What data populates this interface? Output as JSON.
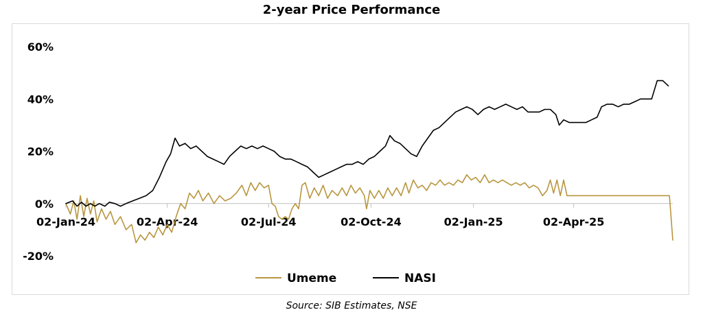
{
  "chart_data": {
    "type": "line",
    "title": "2-year Price Performance",
    "source": "Source: SIB Estimates, NSE",
    "ylim": [
      -0.2,
      0.6
    ],
    "y_ticks": [
      {
        "value": -0.2,
        "label": "-20%"
      },
      {
        "value": 0.0,
        "label": "0%"
      },
      {
        "value": 0.2,
        "label": "20%"
      },
      {
        "value": 0.4,
        "label": "40%"
      },
      {
        "value": 0.6,
        "label": "60%"
      }
    ],
    "xlim": [
      "2024-01-02",
      "2025-06-30"
    ],
    "x_ticks": [
      {
        "date": "2024-01-02",
        "label": "02-Jan-24"
      },
      {
        "date": "2024-04-02",
        "label": "02-Apr-24"
      },
      {
        "date": "2024-07-02",
        "label": "02-Jul-24"
      },
      {
        "date": "2024-10-02",
        "label": "02-Oct-24"
      },
      {
        "date": "2025-01-02",
        "label": "02-Jan-25"
      },
      {
        "date": "2025-04-02",
        "label": "02-Apr-25"
      }
    ],
    "grid": false,
    "legend_position": "bottom",
    "series": [
      {
        "name": "Umeme",
        "color": "#b8963e",
        "points": [
          [
            "2024-01-02",
            0.0
          ],
          [
            "2024-01-06",
            -0.04
          ],
          [
            "2024-01-09",
            0.01
          ],
          [
            "2024-01-12",
            -0.06
          ],
          [
            "2024-01-15",
            0.03
          ],
          [
            "2024-01-18",
            -0.05
          ],
          [
            "2024-01-21",
            0.02
          ],
          [
            "2024-01-24",
            -0.04
          ],
          [
            "2024-01-27",
            0.01
          ],
          [
            "2024-01-30",
            -0.07
          ],
          [
            "2024-02-03",
            -0.02
          ],
          [
            "2024-02-07",
            -0.06
          ],
          [
            "2024-02-11",
            -0.03
          ],
          [
            "2024-02-15",
            -0.08
          ],
          [
            "2024-02-20",
            -0.05
          ],
          [
            "2024-02-25",
            -0.1
          ],
          [
            "2024-03-01",
            -0.08
          ],
          [
            "2024-03-05",
            -0.15
          ],
          [
            "2024-03-09",
            -0.12
          ],
          [
            "2024-03-13",
            -0.14
          ],
          [
            "2024-03-17",
            -0.11
          ],
          [
            "2024-03-21",
            -0.13
          ],
          [
            "2024-03-25",
            -0.09
          ],
          [
            "2024-03-29",
            -0.12
          ],
          [
            "2024-04-02",
            -0.08
          ],
          [
            "2024-04-06",
            -0.11
          ],
          [
            "2024-04-10",
            -0.05
          ],
          [
            "2024-04-14",
            0.0
          ],
          [
            "2024-04-18",
            -0.02
          ],
          [
            "2024-04-22",
            0.04
          ],
          [
            "2024-04-26",
            0.02
          ],
          [
            "2024-04-30",
            0.05
          ],
          [
            "2024-05-04",
            0.01
          ],
          [
            "2024-05-09",
            0.04
          ],
          [
            "2024-05-14",
            0.0
          ],
          [
            "2024-05-19",
            0.03
          ],
          [
            "2024-05-24",
            0.01
          ],
          [
            "2024-05-29",
            0.02
          ],
          [
            "2024-06-03",
            0.04
          ],
          [
            "2024-06-08",
            0.07
          ],
          [
            "2024-06-12",
            0.03
          ],
          [
            "2024-06-16",
            0.08
          ],
          [
            "2024-06-20",
            0.05
          ],
          [
            "2024-06-24",
            0.08
          ],
          [
            "2024-06-28",
            0.06
          ],
          [
            "2024-07-02",
            0.07
          ],
          [
            "2024-07-05",
            0.0
          ],
          [
            "2024-07-08",
            -0.01
          ],
          [
            "2024-07-11",
            -0.05
          ],
          [
            "2024-07-14",
            -0.06
          ],
          [
            "2024-07-17",
            -0.05
          ],
          [
            "2024-07-20",
            -0.06
          ],
          [
            "2024-07-23",
            -0.02
          ],
          [
            "2024-07-26",
            0.0
          ],
          [
            "2024-07-29",
            -0.02
          ],
          [
            "2024-08-01",
            0.07
          ],
          [
            "2024-08-04",
            0.08
          ],
          [
            "2024-08-08",
            0.02
          ],
          [
            "2024-08-12",
            0.06
          ],
          [
            "2024-08-16",
            0.03
          ],
          [
            "2024-08-20",
            0.07
          ],
          [
            "2024-08-24",
            0.02
          ],
          [
            "2024-08-28",
            0.05
          ],
          [
            "2024-09-02",
            0.03
          ],
          [
            "2024-09-06",
            0.06
          ],
          [
            "2024-09-10",
            0.03
          ],
          [
            "2024-09-14",
            0.07
          ],
          [
            "2024-09-18",
            0.04
          ],
          [
            "2024-09-22",
            0.06
          ],
          [
            "2024-09-26",
            0.03
          ],
          [
            "2024-09-28",
            -0.02
          ],
          [
            "2024-10-01",
            0.05
          ],
          [
            "2024-10-05",
            0.02
          ],
          [
            "2024-10-09",
            0.05
          ],
          [
            "2024-10-13",
            0.02
          ],
          [
            "2024-10-17",
            0.06
          ],
          [
            "2024-10-21",
            0.03
          ],
          [
            "2024-10-25",
            0.06
          ],
          [
            "2024-10-29",
            0.03
          ],
          [
            "2024-11-02",
            0.08
          ],
          [
            "2024-11-05",
            0.04
          ],
          [
            "2024-11-09",
            0.09
          ],
          [
            "2024-11-13",
            0.06
          ],
          [
            "2024-11-17",
            0.07
          ],
          [
            "2024-11-21",
            0.05
          ],
          [
            "2024-11-25",
            0.08
          ],
          [
            "2024-11-29",
            0.07
          ],
          [
            "2024-12-03",
            0.09
          ],
          [
            "2024-12-07",
            0.07
          ],
          [
            "2024-12-11",
            0.08
          ],
          [
            "2024-12-15",
            0.07
          ],
          [
            "2024-12-19",
            0.09
          ],
          [
            "2024-12-23",
            0.08
          ],
          [
            "2024-12-27",
            0.11
          ],
          [
            "2024-12-31",
            0.09
          ],
          [
            "2025-01-04",
            0.1
          ],
          [
            "2025-01-08",
            0.08
          ],
          [
            "2025-01-12",
            0.11
          ],
          [
            "2025-01-16",
            0.08
          ],
          [
            "2025-01-20",
            0.09
          ],
          [
            "2025-01-24",
            0.08
          ],
          [
            "2025-01-28",
            0.09
          ],
          [
            "2025-02-01",
            0.08
          ],
          [
            "2025-02-05",
            0.07
          ],
          [
            "2025-02-09",
            0.08
          ],
          [
            "2025-02-13",
            0.07
          ],
          [
            "2025-02-17",
            0.08
          ],
          [
            "2025-02-21",
            0.06
          ],
          [
            "2025-02-25",
            0.07
          ],
          [
            "2025-03-01",
            0.06
          ],
          [
            "2025-03-05",
            0.03
          ],
          [
            "2025-03-09",
            0.05
          ],
          [
            "2025-03-12",
            0.09
          ],
          [
            "2025-03-15",
            0.04
          ],
          [
            "2025-03-18",
            0.09
          ],
          [
            "2025-03-21",
            0.03
          ],
          [
            "2025-03-24",
            0.09
          ],
          [
            "2025-03-27",
            0.03
          ],
          [
            "2025-03-29",
            0.03
          ],
          [
            "2025-06-27",
            0.03
          ],
          [
            "2025-06-30",
            -0.14
          ]
        ]
      },
      {
        "name": "NASI",
        "color": "#000000",
        "points": [
          [
            "2024-01-02",
            0.0
          ],
          [
            "2024-01-08",
            0.01
          ],
          [
            "2024-01-12",
            -0.01
          ],
          [
            "2024-01-16",
            0.005
          ],
          [
            "2024-01-20",
            -0.01
          ],
          [
            "2024-01-24",
            0.0
          ],
          [
            "2024-01-28",
            -0.01
          ],
          [
            "2024-02-01",
            0.0
          ],
          [
            "2024-02-06",
            -0.01
          ],
          [
            "2024-02-10",
            0.005
          ],
          [
            "2024-02-15",
            0.0
          ],
          [
            "2024-02-20",
            -0.01
          ],
          [
            "2024-02-25",
            0.0
          ],
          [
            "2024-03-02",
            0.01
          ],
          [
            "2024-03-08",
            0.02
          ],
          [
            "2024-03-14",
            0.03
          ],
          [
            "2024-03-20",
            0.05
          ],
          [
            "2024-03-26",
            0.1
          ],
          [
            "2024-04-01",
            0.16
          ],
          [
            "2024-04-05",
            0.19
          ],
          [
            "2024-04-09",
            0.25
          ],
          [
            "2024-04-13",
            0.22
          ],
          [
            "2024-04-18",
            0.23
          ],
          [
            "2024-04-23",
            0.21
          ],
          [
            "2024-04-28",
            0.22
          ],
          [
            "2024-05-03",
            0.2
          ],
          [
            "2024-05-08",
            0.18
          ],
          [
            "2024-05-13",
            0.17
          ],
          [
            "2024-05-18",
            0.16
          ],
          [
            "2024-05-23",
            0.15
          ],
          [
            "2024-05-28",
            0.18
          ],
          [
            "2024-06-02",
            0.2
          ],
          [
            "2024-06-07",
            0.22
          ],
          [
            "2024-06-12",
            0.21
          ],
          [
            "2024-06-17",
            0.22
          ],
          [
            "2024-06-22",
            0.21
          ],
          [
            "2024-06-27",
            0.22
          ],
          [
            "2024-07-02",
            0.21
          ],
          [
            "2024-07-07",
            0.2
          ],
          [
            "2024-07-12",
            0.18
          ],
          [
            "2024-07-17",
            0.17
          ],
          [
            "2024-07-22",
            0.17
          ],
          [
            "2024-07-27",
            0.16
          ],
          [
            "2024-08-01",
            0.15
          ],
          [
            "2024-08-06",
            0.14
          ],
          [
            "2024-08-11",
            0.12
          ],
          [
            "2024-08-16",
            0.1
          ],
          [
            "2024-08-21",
            0.11
          ],
          [
            "2024-08-26",
            0.12
          ],
          [
            "2024-08-31",
            0.13
          ],
          [
            "2024-09-05",
            0.14
          ],
          [
            "2024-09-10",
            0.15
          ],
          [
            "2024-09-15",
            0.15
          ],
          [
            "2024-09-20",
            0.16
          ],
          [
            "2024-09-25",
            0.15
          ],
          [
            "2024-09-30",
            0.17
          ],
          [
            "2024-10-05",
            0.18
          ],
          [
            "2024-10-10",
            0.2
          ],
          [
            "2024-10-15",
            0.22
          ],
          [
            "2024-10-19",
            0.26
          ],
          [
            "2024-10-23",
            0.24
          ],
          [
            "2024-10-28",
            0.23
          ],
          [
            "2024-11-02",
            0.21
          ],
          [
            "2024-11-07",
            0.19
          ],
          [
            "2024-11-12",
            0.18
          ],
          [
            "2024-11-17",
            0.22
          ],
          [
            "2024-11-22",
            0.25
          ],
          [
            "2024-11-27",
            0.28
          ],
          [
            "2024-12-02",
            0.29
          ],
          [
            "2024-12-07",
            0.31
          ],
          [
            "2024-12-12",
            0.33
          ],
          [
            "2024-12-17",
            0.35
          ],
          [
            "2024-12-22",
            0.36
          ],
          [
            "2024-12-27",
            0.37
          ],
          [
            "2025-01-01",
            0.36
          ],
          [
            "2025-01-06",
            0.34
          ],
          [
            "2025-01-11",
            0.36
          ],
          [
            "2025-01-16",
            0.37
          ],
          [
            "2025-01-21",
            0.36
          ],
          [
            "2025-01-26",
            0.37
          ],
          [
            "2025-01-31",
            0.38
          ],
          [
            "2025-02-05",
            0.37
          ],
          [
            "2025-02-10",
            0.36
          ],
          [
            "2025-02-15",
            0.37
          ],
          [
            "2025-02-20",
            0.35
          ],
          [
            "2025-02-25",
            0.35
          ],
          [
            "2025-03-02",
            0.35
          ],
          [
            "2025-03-07",
            0.36
          ],
          [
            "2025-03-12",
            0.36
          ],
          [
            "2025-03-17",
            0.34
          ],
          [
            "2025-03-20",
            0.3
          ],
          [
            "2025-03-24",
            0.32
          ],
          [
            "2025-03-29",
            0.31
          ],
          [
            "2025-04-03",
            0.31
          ],
          [
            "2025-04-08",
            0.31
          ],
          [
            "2025-04-13",
            0.31
          ],
          [
            "2025-04-18",
            0.32
          ],
          [
            "2025-04-23",
            0.33
          ],
          [
            "2025-04-27",
            0.37
          ],
          [
            "2025-05-02",
            0.38
          ],
          [
            "2025-05-07",
            0.38
          ],
          [
            "2025-05-12",
            0.37
          ],
          [
            "2025-05-17",
            0.38
          ],
          [
            "2025-05-22",
            0.38
          ],
          [
            "2025-05-27",
            0.39
          ],
          [
            "2025-06-01",
            0.4
          ],
          [
            "2025-06-06",
            0.4
          ],
          [
            "2025-06-11",
            0.4
          ],
          [
            "2025-06-16",
            0.47
          ],
          [
            "2025-06-21",
            0.47
          ],
          [
            "2025-06-26",
            0.45
          ]
        ]
      }
    ]
  }
}
